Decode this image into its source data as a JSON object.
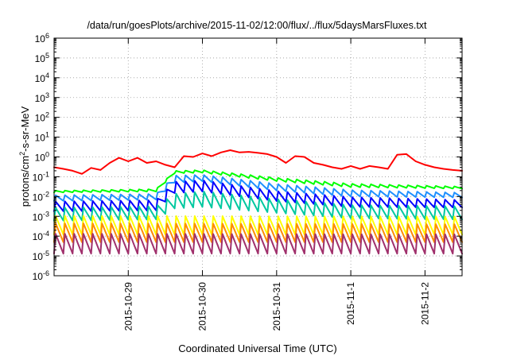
{
  "chart_data": {
    "type": "line",
    "title": "/data/run/goesPlots/archive/2015-11-02/12:00/flux/../flux/5daysMarsFluxes.txt",
    "xlabel": "Coordinated Universal Time (UTC)",
    "ylabel": "protons/cm2-s-sr-MeV",
    "ylabel_parts": {
      "base": "protons/cm",
      "sup": "2",
      "rest": "-s-sr-MeV"
    },
    "y_scale": "log",
    "ylim": [
      "1e-6",
      "1e6"
    ],
    "y_ticks": [
      {
        "base": "10",
        "exp": "6"
      },
      {
        "base": "10",
        "exp": "5"
      },
      {
        "base": "10",
        "exp": "4"
      },
      {
        "base": "10",
        "exp": "3"
      },
      {
        "base": "10",
        "exp": "2"
      },
      {
        "base": "10",
        "exp": "1"
      },
      {
        "base": "10",
        "exp": "0"
      },
      {
        "base": "10",
        "exp": "-1"
      },
      {
        "base": "10",
        "exp": "-2"
      },
      {
        "base": "10",
        "exp": "-3"
      },
      {
        "base": "10",
        "exp": "-4"
      },
      {
        "base": "10",
        "exp": "-5"
      },
      {
        "base": "10",
        "exp": "-6"
      }
    ],
    "x_axis": {
      "type": "date",
      "range": [
        "2015-10-28 00:00",
        "2015-11-02 12:00"
      ],
      "tick_labels": [
        "2015-10-29",
        "2015-10-30",
        "2015-10-31",
        "2015-11-1",
        "2015-11-2"
      ],
      "tick_dates": [
        "2015-10-29 00:00",
        "2015-10-30 00:00",
        "2015-10-31 00:00",
        "2015-11-01 00:00",
        "2015-11-02 00:00"
      ]
    },
    "grid": "dotted",
    "legend": "none",
    "series": [
      {
        "color": "#ff0000",
        "kind": "smooth",
        "points": [
          [
            "2015-10-28 00:00",
            0.3
          ],
          [
            "2015-10-28 03:00",
            0.25
          ],
          [
            "2015-10-28 06:00",
            0.2
          ],
          [
            "2015-10-28 09:00",
            0.14
          ],
          [
            "2015-10-28 12:00",
            0.28
          ],
          [
            "2015-10-28 15:00",
            0.22
          ],
          [
            "2015-10-28 18:00",
            0.5
          ],
          [
            "2015-10-28 21:00",
            0.9
          ],
          [
            "2015-10-29 00:00",
            0.6
          ],
          [
            "2015-10-29 03:00",
            0.9
          ],
          [
            "2015-10-29 06:00",
            0.5
          ],
          [
            "2015-10-29 09:00",
            0.6
          ],
          [
            "2015-10-29 12:00",
            0.4
          ],
          [
            "2015-10-29 15:00",
            0.3
          ],
          [
            "2015-10-29 18:00",
            1.1
          ],
          [
            "2015-10-29 21:00",
            1.0
          ],
          [
            "2015-10-30 00:00",
            1.5
          ],
          [
            "2015-10-30 03:00",
            1.1
          ],
          [
            "2015-10-30 06:00",
            1.7
          ],
          [
            "2015-10-30 09:00",
            2.2
          ],
          [
            "2015-10-30 12:00",
            1.7
          ],
          [
            "2015-10-30 15:00",
            1.8
          ],
          [
            "2015-10-30 18:00",
            1.6
          ],
          [
            "2015-10-30 21:00",
            1.4
          ],
          [
            "2015-10-31 00:00",
            1.0
          ],
          [
            "2015-10-31 03:00",
            0.5
          ],
          [
            "2015-10-31 06:00",
            1.1
          ],
          [
            "2015-10-31 09:00",
            1.0
          ],
          [
            "2015-10-31 12:00",
            0.5
          ],
          [
            "2015-10-31 15:00",
            0.4
          ],
          [
            "2015-10-31 18:00",
            0.3
          ],
          [
            "2015-10-31 21:00",
            0.25
          ],
          [
            "2015-11-01 00:00",
            0.35
          ],
          [
            "2015-11-01 03:00",
            0.25
          ],
          [
            "2015-11-01 06:00",
            0.35
          ],
          [
            "2015-11-01 09:00",
            0.3
          ],
          [
            "2015-11-01 12:00",
            0.25
          ],
          [
            "2015-11-01 15:00",
            1.3
          ],
          [
            "2015-11-01 18:00",
            1.4
          ],
          [
            "2015-11-01 21:00",
            0.6
          ],
          [
            "2015-11-02 00:00",
            0.4
          ],
          [
            "2015-11-02 03:00",
            0.3
          ],
          [
            "2015-11-02 06:00",
            0.25
          ],
          [
            "2015-11-02 09:00",
            0.22
          ],
          [
            "2015-11-02 12:00",
            0.2
          ]
        ]
      },
      {
        "color": "#00ff00",
        "kind": "sawtooth",
        "low": [
          [
            "2015-10-28 00:00",
            0.016
          ],
          [
            "2015-10-29 09:00",
            0.018
          ],
          [
            "2015-10-29 15:00",
            0.15
          ],
          [
            "2015-10-30 00:00",
            0.16
          ],
          [
            "2015-10-31 00:00",
            0.06
          ],
          [
            "2015-11-01 00:00",
            0.03
          ],
          [
            "2015-11-02 12:00",
            0.025
          ]
        ],
        "high": [
          [
            "2015-10-28 00:00",
            0.02
          ],
          [
            "2015-10-29 09:00",
            0.024
          ],
          [
            "2015-10-29 15:00",
            0.2
          ],
          [
            "2015-10-30 00:00",
            0.22
          ],
          [
            "2015-10-31 00:00",
            0.09
          ],
          [
            "2015-11-01 00:00",
            0.045
          ],
          [
            "2015-11-02 12:00",
            0.032
          ]
        ]
      },
      {
        "color": "#1e90ff",
        "kind": "sawtooth",
        "low": [
          [
            "2015-10-28 00:00",
            0.006
          ],
          [
            "2015-10-29 09:00",
            0.007
          ],
          [
            "2015-10-29 15:00",
            0.05
          ],
          [
            "2015-10-30 00:00",
            0.06
          ],
          [
            "2015-10-31 00:00",
            0.02
          ],
          [
            "2015-11-01 00:00",
            0.01
          ],
          [
            "2015-11-02 12:00",
            0.009
          ]
        ],
        "high": [
          [
            "2015-10-28 00:00",
            0.012
          ],
          [
            "2015-10-29 09:00",
            0.014
          ],
          [
            "2015-10-29 15:00",
            0.12
          ],
          [
            "2015-10-30 00:00",
            0.13
          ],
          [
            "2015-10-31 00:00",
            0.045
          ],
          [
            "2015-11-01 00:00",
            0.022
          ],
          [
            "2015-11-02 12:00",
            0.016
          ]
        ]
      },
      {
        "color": "#0000ff",
        "kind": "sawtooth",
        "low": [
          [
            "2015-10-28 00:00",
            0.0018
          ],
          [
            "2015-10-29 09:00",
            0.002
          ],
          [
            "2015-10-29 15:00",
            0.015
          ],
          [
            "2015-10-30 00:00",
            0.018
          ],
          [
            "2015-10-31 00:00",
            0.006
          ],
          [
            "2015-11-01 00:00",
            0.003
          ],
          [
            "2015-11-02 12:00",
            0.0028
          ]
        ],
        "high": [
          [
            "2015-10-28 00:00",
            0.006
          ],
          [
            "2015-10-29 09:00",
            0.007
          ],
          [
            "2015-10-29 15:00",
            0.06
          ],
          [
            "2015-10-30 00:00",
            0.07
          ],
          [
            "2015-10-31 00:00",
            0.02
          ],
          [
            "2015-11-01 00:00",
            0.01
          ],
          [
            "2015-11-02 12:00",
            0.007
          ]
        ]
      },
      {
        "color": "#00c8a0",
        "kind": "sawtooth",
        "low": [
          [
            "2015-10-28 00:00",
            0.0006
          ],
          [
            "2015-10-29 09:00",
            0.0007
          ],
          [
            "2015-10-29 15:00",
            0.0025
          ],
          [
            "2015-10-30 00:00",
            0.003
          ],
          [
            "2015-10-31 00:00",
            0.0015
          ],
          [
            "2015-11-01 00:00",
            0.0008
          ],
          [
            "2015-11-02 12:00",
            0.0007
          ]
        ],
        "high": [
          [
            "2015-10-28 00:00",
            0.003
          ],
          [
            "2015-10-29 09:00",
            0.0035
          ],
          [
            "2015-10-29 15:00",
            0.015
          ],
          [
            "2015-10-30 00:00",
            0.02
          ],
          [
            "2015-10-31 00:00",
            0.008
          ],
          [
            "2015-11-01 00:00",
            0.004
          ],
          [
            "2015-11-02 12:00",
            0.0035
          ]
        ]
      },
      {
        "color": "#ffff00",
        "kind": "sawtooth",
        "low": [
          [
            "2015-10-28 00:00",
            0.00012
          ],
          [
            "2015-11-02 12:00",
            0.00012
          ]
        ],
        "high": [
          [
            "2015-10-28 00:00",
            0.0012
          ],
          [
            "2015-11-02 12:00",
            0.0011
          ]
        ]
      },
      {
        "color": "#ff8c00",
        "kind": "sawtooth",
        "low": [
          [
            "2015-10-28 00:00",
            5e-05
          ],
          [
            "2015-11-02 12:00",
            5e-05
          ]
        ],
        "high": [
          [
            "2015-10-28 00:00",
            0.0005
          ],
          [
            "2015-11-02 12:00",
            0.00045
          ]
        ]
      },
      {
        "color": "#a0306c",
        "kind": "sawtooth",
        "low": [
          [
            "2015-10-28 00:00",
            1.3e-05
          ],
          [
            "2015-11-02 12:00",
            1.3e-05
          ]
        ],
        "high": [
          [
            "2015-10-28 00:00",
            0.00015
          ],
          [
            "2015-11-02 12:00",
            0.00014
          ]
        ]
      }
    ]
  }
}
